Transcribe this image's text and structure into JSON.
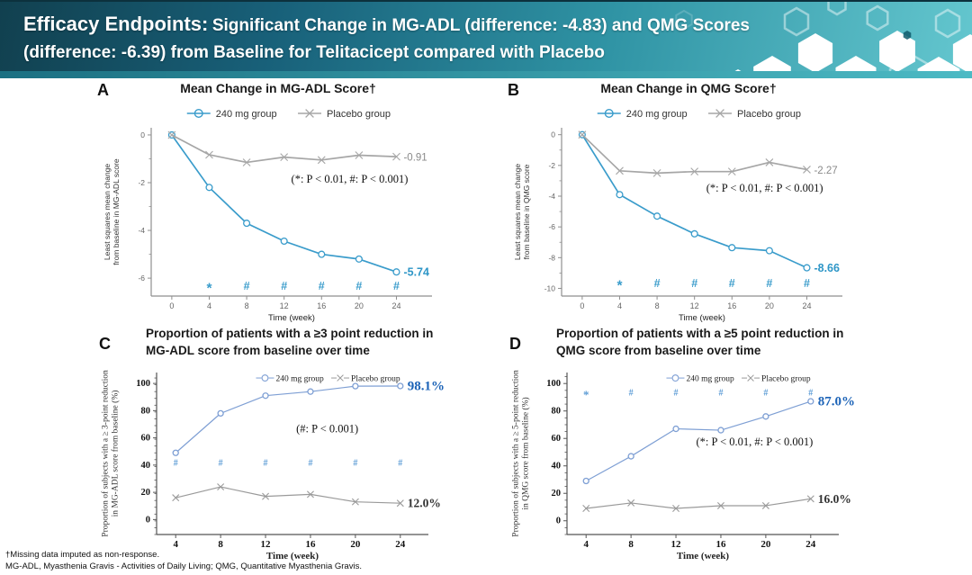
{
  "header": {
    "line1_strong": "Efficacy Endpoints:",
    "line1_rest": "Significant Change in MG-ADL (difference: -4.83) and QMG Scores",
    "line2": "(difference: -6.39) from Baseline for Telitacicept compared with Placebo"
  },
  "colors": {
    "accent_blue": "#3a9ccb",
    "light_blue": "#7e9fd4",
    "strong_blue": "#1c63b7",
    "gray_line": "#a6a6a6",
    "sig_blue": "#5b9bd5",
    "header_dark": "#11404f",
    "header_light": "#64c7cf"
  },
  "panels": [
    {
      "label": "A",
      "title": "Mean Change in MG-ADL Score†"
    },
    {
      "label": "B",
      "title": "Mean Change in QMG Score†"
    },
    {
      "label": "C",
      "title_line1": "Proportion of patients with a ≥3 point reduction in",
      "title_line2": "MG-ADL score from baseline over time"
    },
    {
      "label": "D",
      "title_line1": "Proportion of patients with a ≥5 point reduction in",
      "title_line2": "QMG score from baseline over time"
    }
  ],
  "chart_data": [
    {
      "id": "A",
      "type": "line",
      "title": "Mean Change in MG-ADL Score†",
      "xlabel": "Time (week)",
      "ylabel": [
        "Least squares mean change",
        "from baseline in MG-ADL score"
      ],
      "x": [
        0,
        4,
        8,
        12,
        16,
        20,
        24
      ],
      "x_ticks": [
        0,
        4,
        8,
        12,
        16,
        20,
        24
      ],
      "y_ticks": [
        0,
        -2,
        -4,
        -6
      ],
      "xlim": [
        -2.2,
        27.8
      ],
      "ylim": [
        -6.75,
        0.3
      ],
      "series": [
        {
          "name": "240 mg group",
          "color": "#3a9ccb",
          "marker": "circle",
          "values": [
            0,
            -2.2,
            -3.7,
            -4.45,
            -5.0,
            -5.2,
            -5.74
          ]
        },
        {
          "name": "Placebo group",
          "color": "#a6a6a6",
          "marker": "x",
          "values": [
            0,
            -0.83,
            -1.15,
            -0.93,
            -1.05,
            -0.85,
            -0.91
          ]
        }
      ],
      "end_labels": [
        {
          "text": "-5.74",
          "color": "#2e96c7",
          "bold": true
        },
        {
          "text": "-0.91",
          "color": "#8a8a8a",
          "bold": false
        }
      ],
      "annotation": {
        "text": "(*: P < 0.01, #: P < 0.001)",
        "x": 19,
        "y": -2.0
      },
      "sig": {
        "y": -6.35,
        "color": "#3a9ccb",
        "items": [
          {
            "x": 4,
            "s": "*"
          },
          {
            "x": 8,
            "s": "#"
          },
          {
            "x": 12,
            "s": "#"
          },
          {
            "x": 16,
            "s": "#"
          },
          {
            "x": 20,
            "s": "#"
          },
          {
            "x": 24,
            "s": "#"
          }
        ]
      },
      "legend": {
        "pos": "top",
        "entries": [
          {
            "label": "240 mg group",
            "color": "#3a9ccb",
            "marker": "circle"
          },
          {
            "label": "Placebo group",
            "color": "#a6a6a6",
            "marker": "x"
          }
        ]
      }
    },
    {
      "id": "B",
      "type": "line",
      "title": "Mean Change in QMG Score†",
      "xlabel": "Time (week)",
      "ylabel": [
        "Least squares mean change",
        "from baseline in QMG score"
      ],
      "x": [
        0,
        4,
        8,
        12,
        16,
        20,
        24
      ],
      "x_ticks": [
        0,
        4,
        8,
        12,
        16,
        20,
        24
      ],
      "y_ticks": [
        0,
        -2,
        -4,
        -6,
        -8,
        -10
      ],
      "xlim": [
        -2.2,
        27.8
      ],
      "ylim": [
        -10.5,
        0.45
      ],
      "series": [
        {
          "name": "240 mg group",
          "color": "#3a9ccb",
          "marker": "circle",
          "values": [
            0,
            -3.9,
            -5.3,
            -6.45,
            -7.35,
            -7.55,
            -8.66
          ]
        },
        {
          "name": "Placebo group",
          "color": "#a6a6a6",
          "marker": "x",
          "values": [
            0,
            -2.35,
            -2.5,
            -2.4,
            -2.4,
            -1.8,
            -2.27
          ]
        }
      ],
      "end_labels": [
        {
          "text": "-8.66",
          "color": "#2e96c7",
          "bold": true
        },
        {
          "text": "-2.27",
          "color": "#8a8a8a",
          "bold": false
        }
      ],
      "annotation": {
        "text": "(*: P < 0.01, #: P < 0.001)",
        "x": 19.5,
        "y": -3.7
      },
      "sig": {
        "y": -9.7,
        "color": "#3a9ccb",
        "items": [
          {
            "x": 4,
            "s": "*"
          },
          {
            "x": 8,
            "s": "#"
          },
          {
            "x": 12,
            "s": "#"
          },
          {
            "x": 16,
            "s": "#"
          },
          {
            "x": 20,
            "s": "#"
          },
          {
            "x": 24,
            "s": "#"
          }
        ]
      },
      "legend": {
        "pos": "top",
        "entries": [
          {
            "label": "240 mg group",
            "color": "#3a9ccb",
            "marker": "circle"
          },
          {
            "label": "Placebo group",
            "color": "#a6a6a6",
            "marker": "x"
          }
        ]
      }
    },
    {
      "id": "C",
      "type": "line",
      "title": "Proportion of patients with a ≥3 point reduction in MG-ADL score from baseline over time",
      "xlabel": "Time (week)",
      "ylabel": [
        "Proportion of subjects with a ≥ 3-point reduction",
        "in MG-ADL score from baseline (%)"
      ],
      "x": [
        4,
        8,
        12,
        16,
        20,
        24
      ],
      "x_ticks": [
        4,
        8,
        12,
        16,
        20,
        24
      ],
      "y_ticks": [
        0,
        20,
        40,
        60,
        80,
        100
      ],
      "xlim": [
        2.3,
        26.5
      ],
      "ylim": [
        -11,
        108
      ],
      "series": [
        {
          "name": "240 mg group",
          "color": "#7e9fd4",
          "marker": "circle",
          "values": [
            49,
            78,
            91,
            94,
            98,
            98.1
          ]
        },
        {
          "name": "Placebo group",
          "color": "#9a9a9a",
          "marker": "x",
          "values": [
            16,
            24,
            17,
            18.5,
            13,
            12.0
          ]
        }
      ],
      "end_labels": [
        {
          "text": "98.1%",
          "color": "#1c63b7",
          "bold": true
        },
        {
          "text": "12.0%",
          "color": "#333333",
          "bold": true
        }
      ],
      "annotation": {
        "text": "(#: P < 0.001)",
        "x": 17.5,
        "y": 64
      },
      "sig": {
        "y": 42,
        "color": "#5b9bd5",
        "items": [
          {
            "x": 4,
            "s": "#"
          },
          {
            "x": 8,
            "s": "#"
          },
          {
            "x": 12,
            "s": "#"
          },
          {
            "x": 16,
            "s": "#"
          },
          {
            "x": 20,
            "s": "#"
          },
          {
            "x": 24,
            "s": "#"
          }
        ]
      },
      "legend": {
        "pos": "inner",
        "y": 104,
        "entries": [
          {
            "label": "240 mg group",
            "color": "#7e9fd4",
            "marker": "circle"
          },
          {
            "label": "Placebo group",
            "color": "#9a9a9a",
            "marker": "x"
          }
        ]
      }
    },
    {
      "id": "D",
      "type": "line",
      "title": "Proportion of patients with a ≥5 point reduction in QMG score from baseline over time",
      "xlabel": "Time (week)",
      "ylabel": [
        "Proportion of subjects with a ≥ 5-point reduction",
        "in QMG score from baseline (%)"
      ],
      "x": [
        4,
        8,
        12,
        16,
        20,
        24
      ],
      "x_ticks": [
        4,
        8,
        12,
        16,
        20,
        24
      ],
      "y_ticks": [
        0,
        20,
        40,
        60,
        80,
        100
      ],
      "xlim": [
        2.3,
        26.5
      ],
      "ylim": [
        -10,
        108
      ],
      "series": [
        {
          "name": "240 mg group",
          "color": "#7e9fd4",
          "marker": "circle",
          "values": [
            29,
            47,
            67,
            66,
            76,
            87.0
          ]
        },
        {
          "name": "Placebo group",
          "color": "#9a9a9a",
          "marker": "x",
          "values": [
            9,
            13,
            9,
            11,
            11,
            16.0
          ]
        }
      ],
      "end_labels": [
        {
          "text": "87.0%",
          "color": "#1c63b7",
          "bold": true
        },
        {
          "text": "16.0%",
          "color": "#333333",
          "bold": true
        }
      ],
      "annotation": {
        "text": "(*: P < 0.01, #: P < 0.001)",
        "x": 19,
        "y": 55
      },
      "sig": {
        "y": 93.5,
        "color": "#5b9bd5",
        "items": [
          {
            "x": 4,
            "s": "*"
          },
          {
            "x": 8,
            "s": "#"
          },
          {
            "x": 12,
            "s": "#"
          },
          {
            "x": 16,
            "s": "#"
          },
          {
            "x": 20,
            "s": "#"
          },
          {
            "x": 24,
            "s": "#"
          }
        ]
      },
      "legend": {
        "pos": "inner",
        "y": 104,
        "entries": [
          {
            "label": "240 mg group",
            "color": "#7e9fd4",
            "marker": "circle"
          },
          {
            "label": "Placebo group",
            "color": "#9a9a9a",
            "marker": "x"
          }
        ]
      }
    }
  ],
  "footnotes": {
    "line1": "†Missing data imputed as non-response.",
    "line2": "MG-ADL, Myasthenia Gravis - Activities of Daily Living; QMG, Quantitative Myasthenia Gravis."
  }
}
